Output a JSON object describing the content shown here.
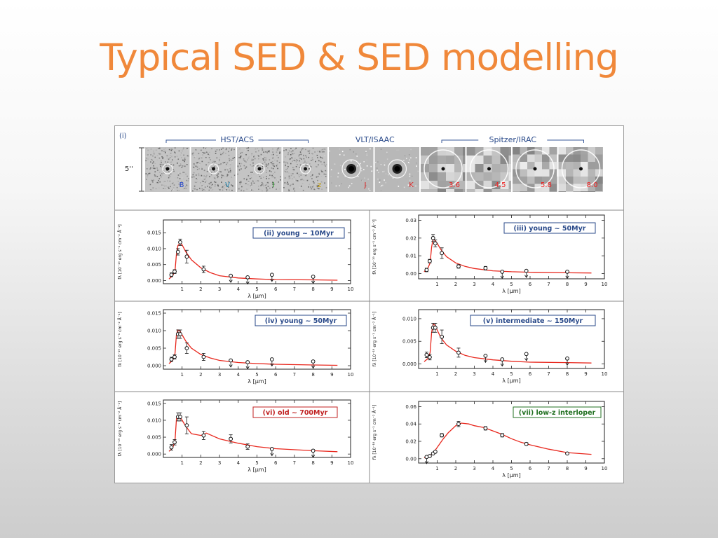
{
  "slide": {
    "title": "Typical SED & SED modelling"
  },
  "figure": {
    "stamps_panel": {
      "label": "(i)",
      "scale_label": "5''",
      "groups": [
        {
          "name": "HST/ACS",
          "bands": [
            "B",
            "V",
            "I",
            "z"
          ]
        },
        {
          "name": "VLT/ISAAC",
          "bands": [
            "J",
            "K"
          ]
        },
        {
          "name": "Spitzer/IRAC",
          "bands": [
            "3.6",
            "4.5",
            "5.8",
            "8.0"
          ]
        }
      ],
      "band_colors": [
        "#2244cc",
        "#2a8fb8",
        "#20a020",
        "#c8a000",
        "#dd2222",
        "#dd2222",
        "#ee2222",
        "#ee2222",
        "#ee2222",
        "#ee2222"
      ]
    },
    "axis_unit_label_lambda": "λ [μm]",
    "y_axis_label_small": "fλ [10⁻¹⁹ erg s⁻¹ cm⁻² Å⁻¹]",
    "y_axis_label_large": "fλ [10⁻¹⁸ erg s⁻¹ cm⁻² Å⁻¹]"
  },
  "chart_data": [
    {
      "type": "scatter",
      "title": "(ii) young ~ 10Myr",
      "xlabel": "λ [μm]",
      "ylabel": "fλ [10⁻¹⁹ erg s⁻¹ cm⁻² Å⁻¹]",
      "xlim": [
        0,
        10
      ],
      "ylim": [
        -0.001,
        0.019
      ],
      "xticks": [
        1,
        2,
        3,
        4,
        5,
        6,
        7,
        8,
        9,
        10
      ],
      "yticks": [
        0.0,
        0.005,
        0.01,
        0.015
      ],
      "ytick_labels": [
        "0.000",
        "0.005",
        "0.010",
        "0.015"
      ],
      "points": {
        "x": [
          0.43,
          0.6,
          0.78,
          0.9,
          1.25,
          2.15,
          3.6,
          4.5,
          5.8,
          8.0
        ],
        "y": [
          0.0018,
          0.0028,
          0.009,
          0.012,
          0.0075,
          0.0035,
          0.0015,
          0.001,
          0.0018,
          0.0012
        ],
        "err": [
          0.0006,
          0.0006,
          0.001,
          0.001,
          0.002,
          0.001,
          0,
          0,
          0,
          0
        ],
        "upper_limit": [
          false,
          false,
          false,
          false,
          false,
          false,
          true,
          true,
          true,
          true
        ]
      },
      "model": {
        "x": [
          0.3,
          0.5,
          0.62,
          0.7,
          0.78,
          0.9,
          1.0,
          1.2,
          1.5,
          2.0,
          2.5,
          3.0,
          4.0,
          5.0,
          6.0,
          8.0,
          9.3
        ],
        "y": [
          0.0005,
          0.0015,
          0.003,
          0.0085,
          0.011,
          0.0118,
          0.0112,
          0.009,
          0.0065,
          0.004,
          0.0025,
          0.0015,
          0.0008,
          0.0005,
          0.0003,
          0.0002,
          0.0001
        ]
      }
    },
    {
      "type": "scatter",
      "title": "(iii) young ~ 50Myr",
      "xlabel": "λ [μm]",
      "ylabel": "fλ [10⁻¹⁹ erg s⁻¹ cm⁻² Å⁻¹]",
      "xlim": [
        0,
        10
      ],
      "ylim": [
        -0.003,
        0.033
      ],
      "xticks": [
        1,
        2,
        3,
        4,
        5,
        6,
        7,
        8,
        9,
        10
      ],
      "yticks": [
        0.0,
        0.01,
        0.02,
        0.03
      ],
      "ytick_labels": [
        "0.00",
        "0.01",
        "0.02",
        "0.03"
      ],
      "points": {
        "x": [
          0.43,
          0.6,
          0.78,
          0.9,
          1.25,
          2.15,
          3.6,
          4.5,
          5.8,
          8.0
        ],
        "y": [
          0.002,
          0.007,
          0.02,
          0.017,
          0.0115,
          0.004,
          0.003,
          0.001,
          0.0015,
          0.001
        ],
        "err": [
          0.001,
          0.001,
          0.002,
          0.002,
          0.003,
          0.001,
          0.001,
          0,
          0,
          0
        ],
        "upper_limit": [
          false,
          false,
          false,
          false,
          false,
          false,
          false,
          true,
          true,
          true
        ]
      },
      "model": {
        "x": [
          0.3,
          0.5,
          0.62,
          0.7,
          0.78,
          0.9,
          1.0,
          1.2,
          1.5,
          2.0,
          2.5,
          3.0,
          4.0,
          5.0,
          6.0,
          8.0,
          9.3
        ],
        "y": [
          0.001,
          0.003,
          0.006,
          0.015,
          0.0195,
          0.0185,
          0.017,
          0.0135,
          0.0095,
          0.006,
          0.004,
          0.0028,
          0.0015,
          0.001,
          0.0007,
          0.0004,
          0.0003
        ]
      }
    },
    {
      "type": "scatter",
      "title": "(iv) young ~ 50Myr",
      "xlabel": "λ [μm]",
      "ylabel": "fλ [10⁻¹⁹ erg s⁻¹ cm⁻² Å⁻¹]",
      "xlim": [
        0,
        10
      ],
      "ylim": [
        -0.001,
        0.016
      ],
      "xticks": [
        1,
        2,
        3,
        4,
        5,
        6,
        7,
        8,
        9,
        10
      ],
      "yticks": [
        0.0,
        0.005,
        0.01,
        0.015
      ],
      "ytick_labels": [
        "0.000",
        "0.005",
        "0.010",
        "0.015"
      ],
      "points": {
        "x": [
          0.43,
          0.6,
          0.78,
          0.9,
          1.25,
          2.15,
          3.6,
          4.5,
          5.8,
          8.0
        ],
        "y": [
          0.0018,
          0.0025,
          0.009,
          0.009,
          0.005,
          0.0025,
          0.0015,
          0.001,
          0.0018,
          0.0012
        ],
        "err": [
          0.0006,
          0.0006,
          0.0012,
          0.0012,
          0.0015,
          0.001,
          0,
          0,
          0,
          0
        ],
        "upper_limit": [
          false,
          false,
          false,
          false,
          false,
          false,
          true,
          true,
          true,
          true
        ]
      },
      "model": {
        "x": [
          0.3,
          0.5,
          0.62,
          0.7,
          0.78,
          0.9,
          1.0,
          1.2,
          1.5,
          2.0,
          2.5,
          3.0,
          4.0,
          5.0,
          6.0,
          8.0,
          9.3
        ],
        "y": [
          0.0006,
          0.0015,
          0.0035,
          0.009,
          0.0102,
          0.0098,
          0.0088,
          0.007,
          0.005,
          0.0032,
          0.0022,
          0.0015,
          0.0009,
          0.0006,
          0.0004,
          0.0002,
          0.0001
        ]
      }
    },
    {
      "type": "scatter",
      "title": "(v) intermediate ~ 150Myr",
      "xlabel": "λ [μm]",
      "ylabel": "fλ [10⁻¹⁹ erg s⁻¹ cm⁻² Å⁻¹]",
      "xlim": [
        0,
        10
      ],
      "ylim": [
        -0.001,
        0.012
      ],
      "xticks": [
        1,
        2,
        3,
        4,
        5,
        6,
        7,
        8,
        9,
        10
      ],
      "yticks": [
        0.0,
        0.005,
        0.01
      ],
      "ytick_labels": [
        "0.000",
        "0.005",
        "0.010"
      ],
      "points": {
        "x": [
          0.43,
          0.6,
          0.78,
          0.9,
          1.25,
          2.15,
          3.6,
          4.5,
          5.8,
          8.0
        ],
        "y": [
          0.002,
          0.0015,
          0.008,
          0.008,
          0.006,
          0.0025,
          0.0018,
          0.001,
          0.0022,
          0.0012
        ],
        "err": [
          0.0006,
          0.0006,
          0.001,
          0.001,
          0.0015,
          0.001,
          0,
          0,
          0,
          0
        ],
        "upper_limit": [
          false,
          false,
          false,
          false,
          false,
          false,
          true,
          true,
          true,
          true
        ]
      },
      "model": {
        "x": [
          0.3,
          0.5,
          0.62,
          0.7,
          0.78,
          0.9,
          1.0,
          1.2,
          1.5,
          2.0,
          2.5,
          3.0,
          4.0,
          5.0,
          6.0,
          8.0,
          9.3
        ],
        "y": [
          0.0005,
          0.0012,
          0.0025,
          0.007,
          0.0088,
          0.0085,
          0.0075,
          0.0058,
          0.0042,
          0.0028,
          0.0019,
          0.0014,
          0.0009,
          0.0006,
          0.0004,
          0.0003,
          0.0002
        ]
      }
    },
    {
      "type": "scatter",
      "title": "(vi) old ~ 700Myr",
      "xlabel": "λ [μm]",
      "ylabel": "fλ [10⁻¹⁹ erg s⁻¹ cm⁻² Å⁻¹]",
      "xlim": [
        0,
        10
      ],
      "ylim": [
        -0.001,
        0.016
      ],
      "xticks": [
        1,
        2,
        3,
        4,
        5,
        6,
        7,
        8,
        9,
        10
      ],
      "yticks": [
        0.0,
        0.005,
        0.01,
        0.015
      ],
      "ytick_labels": [
        "0.000",
        "0.005",
        "0.010",
        "0.015"
      ],
      "points": {
        "x": [
          0.43,
          0.6,
          0.78,
          0.9,
          1.25,
          2.15,
          3.6,
          4.5,
          5.8,
          8.0
        ],
        "y": [
          0.002,
          0.0035,
          0.011,
          0.011,
          0.0085,
          0.0055,
          0.0045,
          0.0022,
          0.0015,
          0.001
        ],
        "err": [
          0.0008,
          0.0008,
          0.0012,
          0.0012,
          0.0025,
          0.0012,
          0.0012,
          0.0008,
          0,
          0
        ],
        "upper_limit": [
          false,
          false,
          false,
          false,
          false,
          false,
          false,
          false,
          true,
          true
        ]
      },
      "model": {
        "x": [
          0.3,
          0.5,
          0.62,
          0.7,
          0.78,
          0.9,
          1.0,
          1.2,
          1.5,
          2.0,
          2.3,
          3.0,
          4.0,
          5.0,
          6.0,
          8.0,
          9.3
        ],
        "y": [
          0.0008,
          0.0018,
          0.004,
          0.0105,
          0.0112,
          0.011,
          0.01,
          0.0082,
          0.006,
          0.0055,
          0.0062,
          0.0045,
          0.0032,
          0.0022,
          0.0016,
          0.001,
          0.0007
        ]
      }
    },
    {
      "type": "scatter",
      "title": "(vii) low-z interloper",
      "xlabel": "λ [μm]",
      "ylabel": "fλ [10⁻¹⁸ erg s⁻¹ cm⁻² Å⁻¹]",
      "xlim": [
        0,
        10
      ],
      "ylim": [
        -0.005,
        0.066
      ],
      "xticks": [
        1,
        2,
        3,
        4,
        5,
        6,
        7,
        8,
        9,
        10
      ],
      "yticks": [
        0.0,
        0.02,
        0.04,
        0.06
      ],
      "ytick_labels": [
        "0.00",
        "0.02",
        "0.04",
        "0.06"
      ],
      "points": {
        "x": [
          0.43,
          0.6,
          0.78,
          0.9,
          1.25,
          2.15,
          3.6,
          4.5,
          5.8,
          8.0
        ],
        "y": [
          0.002,
          0.003,
          0.006,
          0.008,
          0.027,
          0.04,
          0.035,
          0.027,
          0.017,
          0.006
        ],
        "err": [
          0.001,
          0.001,
          0.001,
          0.001,
          0.002,
          0.003,
          0.002,
          0.002,
          0.0015,
          0.001
        ],
        "upper_limit": [
          true,
          false,
          false,
          false,
          false,
          false,
          false,
          false,
          false,
          false
        ]
      },
      "model": {
        "x": [
          0.3,
          0.6,
          0.8,
          1.0,
          1.3,
          1.6,
          2.0,
          2.3,
          2.7,
          3.0,
          3.5,
          4.0,
          4.5,
          5.0,
          5.5,
          6.0,
          7.0,
          8.0,
          9.3
        ],
        "y": [
          0.001,
          0.003,
          0.007,
          0.013,
          0.022,
          0.03,
          0.038,
          0.041,
          0.04,
          0.038,
          0.036,
          0.032,
          0.028,
          0.023,
          0.019,
          0.016,
          0.011,
          0.007,
          0.005
        ]
      }
    }
  ]
}
